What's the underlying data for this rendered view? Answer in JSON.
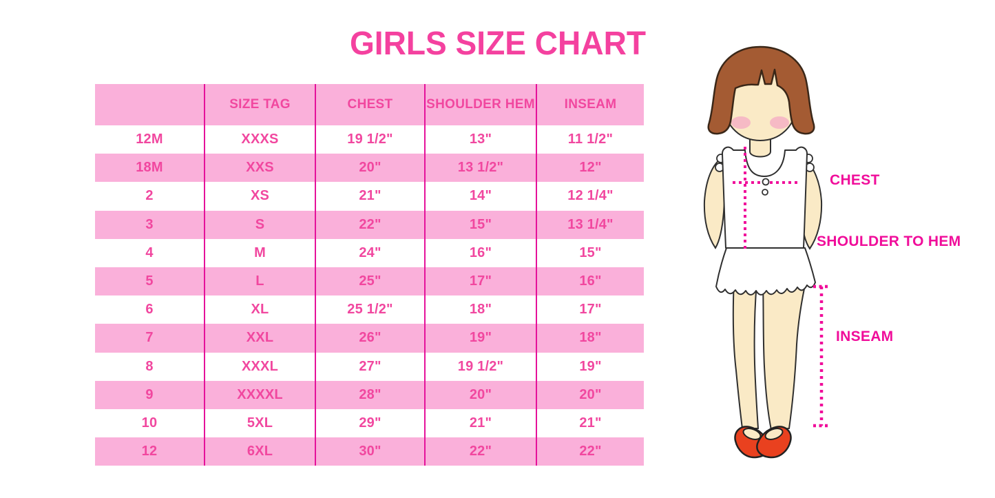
{
  "page": {
    "title": "GIRLS SIZE CHART"
  },
  "colors": {
    "title_pink": "#F4419F",
    "table_text_pink": "#F1479F",
    "row_pink": "#FAB0DA",
    "divider_magenta": "#E5119A",
    "measure_magenta": "#F00D9A",
    "hair_brown": "#A45B33",
    "skin_cream": "#FAEAC6",
    "blush_pink": "#F4B2C4",
    "shoe_red": "#E9411F",
    "outline_dark": "#2F2F2F"
  },
  "chart_data": {
    "type": "table",
    "title": "GIRLS SIZE CHART",
    "columns": [
      "",
      "SIZE TAG",
      "CHEST",
      "SHOULDER HEM",
      "INSEAM"
    ],
    "rows": [
      [
        "12M",
        "XXXS",
        "19 1/2\"",
        "13\"",
        "11 1/2\""
      ],
      [
        "18M",
        "XXS",
        "20\"",
        "13 1/2\"",
        "12\""
      ],
      [
        "2",
        "XS",
        "21\"",
        "14\"",
        "12 1/4\""
      ],
      [
        "3",
        "S",
        "22\"",
        "15\"",
        "13 1/4\""
      ],
      [
        "4",
        "M",
        "24\"",
        "16\"",
        "15\""
      ],
      [
        "5",
        "L",
        "25\"",
        "17\"",
        "16\""
      ],
      [
        "6",
        "XL",
        "25 1/2\"",
        "18\"",
        "17\""
      ],
      [
        "7",
        "XXL",
        "26\"",
        "19\"",
        "18\""
      ],
      [
        "8",
        "XXXL",
        "27\"",
        "19 1/2\"",
        "19\""
      ],
      [
        "9",
        "XXXXL",
        "28\"",
        "20\"",
        "20\""
      ],
      [
        "10",
        "5XL",
        "29\"",
        "21\"",
        "21\""
      ],
      [
        "12",
        "6XL",
        "30\"",
        "22\"",
        "22\""
      ]
    ],
    "layout_hints": {
      "header_row_fill": "light pink",
      "body_rows": "alternating white and light pink, starting white",
      "column_dividers": "vertical magenta lines, no horizontal borders",
      "legend_position": "none",
      "grid": "vertical only"
    }
  },
  "figure": {
    "description_labels": {
      "chest": "CHEST",
      "shoulder_to_hem": "SHOULDER TO HEM",
      "inseam": "INSEAM"
    }
  }
}
